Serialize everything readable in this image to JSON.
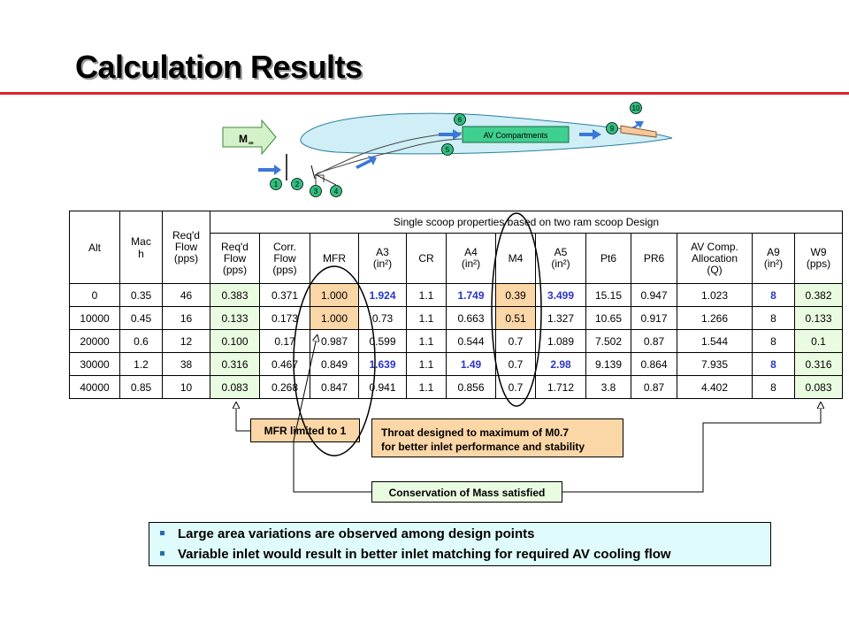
{
  "title": "Calculation Results",
  "diagram": {
    "freestream_label": "M",
    "freestream_sub": "∞",
    "compartment_label": "AV Compartments",
    "stations": [
      "1",
      "2",
      "3",
      "4",
      "5",
      "6",
      "9",
      "10"
    ]
  },
  "table": {
    "headers": {
      "alt": "Alt",
      "mach_1": "Mac",
      "mach_2": "h",
      "req_flow": [
        "Req'd",
        "Flow",
        "(pps)"
      ],
      "group": "Single scoop properties based on two ram scoop Design",
      "cols": [
        [
          "Req'd",
          "Flow",
          "(pps)"
        ],
        [
          "Corr.",
          "Flow",
          "(pps)"
        ],
        [
          "MFR"
        ],
        [
          "A3",
          "(in²)"
        ],
        [
          "CR"
        ],
        [
          "A4",
          "(in²)"
        ],
        [
          "M4"
        ],
        [
          "A5",
          "(in²)"
        ],
        [
          "Pt6"
        ],
        [
          "PR6"
        ],
        [
          "AV Comp.",
          "Allocation",
          "(Q)"
        ],
        [
          "A9",
          "(in²)"
        ],
        [
          "W9",
          "(pps)"
        ]
      ]
    },
    "rows": [
      [
        "0",
        "0.35",
        "46",
        "0.383",
        "0.371",
        "1.000",
        "1.924",
        "1.1",
        "1.749",
        "0.39",
        "3.499",
        "15.15",
        "0.947",
        "1.023",
        "8",
        "0.382"
      ],
      [
        "10000",
        "0.45",
        "16",
        "0.133",
        "0.173",
        "1.000",
        "0.73",
        "1.1",
        "0.663",
        "0.51",
        "1.327",
        "10.65",
        "0.917",
        "1.266",
        "8",
        "0.133"
      ],
      [
        "20000",
        "0.6",
        "12",
        "0.100",
        "0.17",
        "0.987",
        "0.599",
        "1.1",
        "0.544",
        "0.7",
        "1.089",
        "7.502",
        "0.87",
        "1.544",
        "8",
        "0.1"
      ],
      [
        "30000",
        "1.2",
        "38",
        "0.316",
        "0.467",
        "0.849",
        "1.639",
        "1.1",
        "1.49",
        "0.7",
        "2.98",
        "9.139",
        "0.864",
        "7.935",
        "8",
        "0.316"
      ],
      [
        "40000",
        "0.85",
        "10",
        "0.083",
        "0.268",
        "0.847",
        "0.941",
        "1.1",
        "0.856",
        "0.7",
        "1.712",
        "3.8",
        "0.87",
        "4.402",
        "8",
        "0.083"
      ]
    ]
  },
  "callouts": {
    "mfr": "MFR limited to 1",
    "throat_1": "Throat designed to maximum of M0.7",
    "throat_2": "for better inlet performance and stability",
    "conservation": "Conservation of Mass satisfied"
  },
  "bullets": [
    "Large area variations are observed among design points",
    "Variable inlet would result in better inlet matching for required AV cooling flow"
  ],
  "colors": {
    "title_rule": "#e0202e",
    "green_fill": "#e9fbe0",
    "orange_fill": "#fbd6a6",
    "bullet_fill": "#e0fbfb",
    "highlight_text": "#2a36c8",
    "station_marker": "#2fbf7f"
  }
}
